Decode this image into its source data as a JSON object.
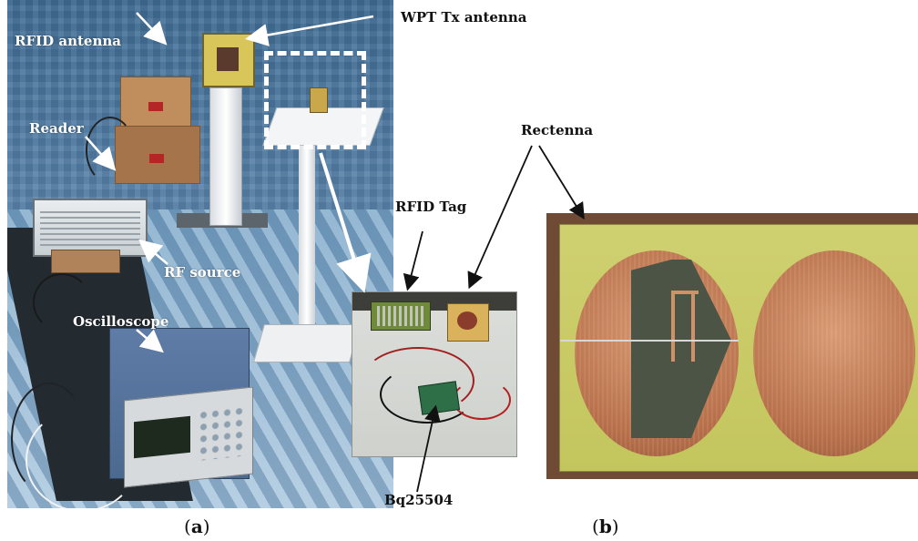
{
  "figure": {
    "labels": {
      "rfid_antenna": "RFID antenna",
      "wpt_tx_antenna": "WPT Tx antenna",
      "reader": "Reader",
      "rf_source": "RF source",
      "oscilloscope": "Oscilloscope",
      "rfid_tag": "RFID Tag",
      "rectenna": "Rectenna",
      "bq25504": "Bq25504"
    },
    "captions": {
      "a_letter": "a",
      "b_letter": "b"
    }
  }
}
